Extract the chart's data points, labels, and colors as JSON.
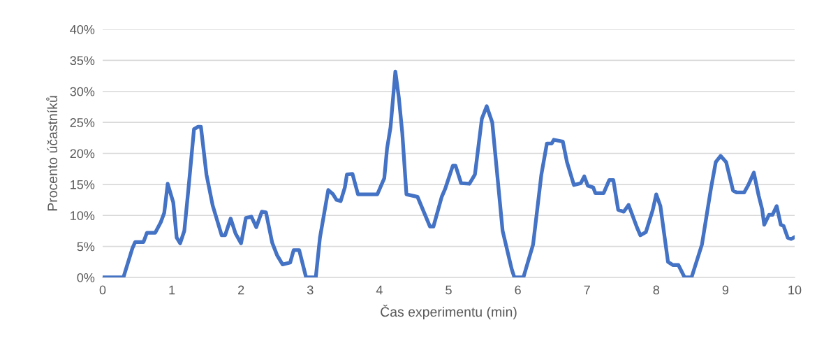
{
  "chart_data": {
    "type": "line",
    "xlabel": "Čas experimentu (min)",
    "ylabel": "Procento účastníků",
    "xlim": [
      0,
      10
    ],
    "xticks": [
      0,
      1,
      2,
      3,
      4,
      5,
      6,
      7,
      8,
      9,
      10
    ],
    "ylim": [
      0,
      40
    ],
    "yticks": [
      {
        "value": 0,
        "label": "0%"
      },
      {
        "value": 5,
        "label": "5%"
      },
      {
        "value": 10,
        "label": "10%"
      },
      {
        "value": 15,
        "label": "15%"
      },
      {
        "value": 20,
        "label": "20%"
      },
      {
        "value": 25,
        "label": "25%"
      },
      {
        "value": 30,
        "label": "30%"
      },
      {
        "value": 35,
        "label": "35%"
      },
      {
        "value": 40,
        "label": "40%"
      }
    ],
    "grid": "y",
    "marker": "none",
    "line_style": "solid",
    "series": [
      {
        "color": "#4472c4",
        "x": [
          0,
          0.3,
          0.43,
          0.47,
          0.59,
          0.64,
          0.76,
          0.84,
          0.89,
          0.94,
          1.02,
          1.07,
          1.12,
          1.18,
          1.24,
          1.32,
          1.38,
          1.42,
          1.5,
          1.59,
          1.72,
          1.77,
          1.85,
          1.92,
          2.0,
          2.07,
          2.15,
          2.22,
          2.3,
          2.36,
          2.45,
          2.52,
          2.6,
          2.71,
          2.76,
          2.84,
          2.94,
          3.08,
          3.14,
          3.26,
          3.33,
          3.38,
          3.44,
          3.5,
          3.53,
          3.61,
          3.69,
          3.97,
          4.07,
          4.11,
          4.16,
          4.23,
          4.28,
          4.33,
          4.39,
          4.55,
          4.73,
          4.78,
          4.9,
          4.95,
          5.06,
          5.1,
          5.18,
          5.3,
          5.38,
          5.48,
          5.55,
          5.63,
          5.78,
          5.91,
          5.95,
          6.08,
          6.22,
          6.34,
          6.42,
          6.49,
          6.52,
          6.65,
          6.71,
          6.81,
          6.91,
          6.96,
          7.01,
          7.09,
          7.12,
          7.24,
          7.32,
          7.38,
          7.45,
          7.53,
          7.6,
          7.72,
          7.77,
          7.85,
          7.95,
          8.0,
          8.06,
          8.17,
          8.24,
          8.32,
          8.41,
          8.51,
          8.66,
          8.79,
          8.86,
          8.93,
          9.01,
          9.11,
          9.16,
          9.27,
          9.33,
          9.41,
          9.48,
          9.53,
          9.56,
          9.63,
          9.68,
          9.74,
          9.8,
          9.84,
          9.9,
          9.95,
          10.0
        ],
        "values": [
          0,
          0,
          4.7,
          5.7,
          5.7,
          7.2,
          7.2,
          8.9,
          10.4,
          15.1,
          12.1,
          6.4,
          5.5,
          7.5,
          14.3,
          23.9,
          24.3,
          24.3,
          16.6,
          11.6,
          6.8,
          6.8,
          9.5,
          7.1,
          5.5,
          9.6,
          9.8,
          8.1,
          10.6,
          10.5,
          5.6,
          3.6,
          2.1,
          2.4,
          4.4,
          4.4,
          0,
          0,
          6.4,
          14.1,
          13.4,
          12.5,
          12.3,
          14.5,
          16.6,
          16.7,
          13.4,
          13.4,
          16.0,
          20.8,
          24.2,
          33.2,
          29.0,
          23.3,
          13.4,
          13.0,
          8.2,
          8.2,
          13.0,
          14.3,
          18.0,
          18.0,
          15.2,
          15.1,
          16.6,
          25.6,
          27.6,
          25.0,
          7.5,
          1.4,
          0,
          0,
          5.3,
          16.6,
          21.6,
          21.6,
          22.2,
          21.9,
          18.6,
          14.9,
          15.2,
          16.3,
          14.8,
          14.5,
          13.6,
          13.6,
          15.7,
          15.7,
          10.9,
          10.6,
          11.7,
          8.1,
          6.8,
          7.3,
          10.9,
          13.4,
          11.5,
          2.5,
          2.0,
          2.0,
          0,
          0,
          5.3,
          14.3,
          18.6,
          19.6,
          18.6,
          14.0,
          13.7,
          13.7,
          14.9,
          16.9,
          13.2,
          11.0,
          8.5,
          10.1,
          10.1,
          11.5,
          8.5,
          8.3,
          6.4,
          6.2,
          6.5
        ]
      }
    ]
  }
}
